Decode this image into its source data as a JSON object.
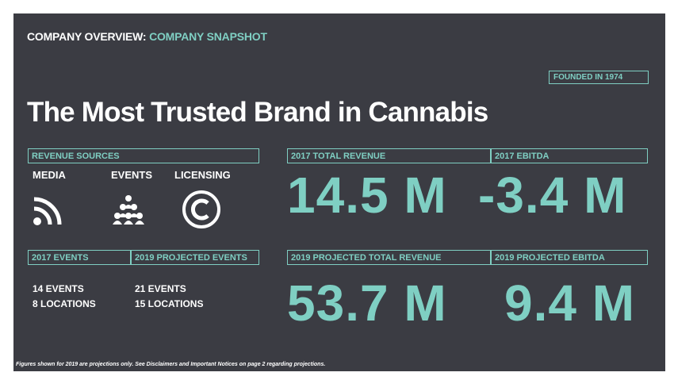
{
  "header": {
    "prefix": "COMPANY OVERVIEW:",
    "suffix": "COMPANY SNAPSHOT"
  },
  "founded": "FOUNDED IN 1974",
  "title": "The Most Trusted Brand in Cannabis",
  "revenue_sources": {
    "label": "REVENUE SOURCES",
    "items": [
      {
        "label": "MEDIA",
        "icon": "rss-feed-icon"
      },
      {
        "label": "EVENTS",
        "icon": "people-group-icon"
      },
      {
        "label": "LICENSING",
        "icon": "copyright-icon"
      }
    ]
  },
  "events": {
    "label_2017": "2017 EVENTS",
    "label_2019": "2019 PROJECTED EVENTS",
    "e2017": {
      "events": "14 EVENTS",
      "locations": "8 LOCATIONS"
    },
    "e2019": {
      "events": "21 EVENTS",
      "locations": "15 LOCATIONS"
    }
  },
  "metrics": {
    "rev2017": {
      "label": "2017 TOTAL REVENUE",
      "value": "14.5 M"
    },
    "ebitda2017": {
      "label": "2017 EBITDA",
      "value": "-3.4 M"
    },
    "rev2019": {
      "label": "2019 PROJECTED TOTAL REVENUE",
      "value": "53.7 M"
    },
    "ebitda2019": {
      "label": "2019 PROJECTED EBITDA",
      "value": "9.4 M"
    }
  },
  "footnote": "Figures shown for 2019 are projections only.  See Disclaimers and Important Notices on page 2 regarding projections.",
  "colors": {
    "background": "#3b3c43",
    "accent": "#7fcfc3",
    "text": "#ffffff"
  }
}
